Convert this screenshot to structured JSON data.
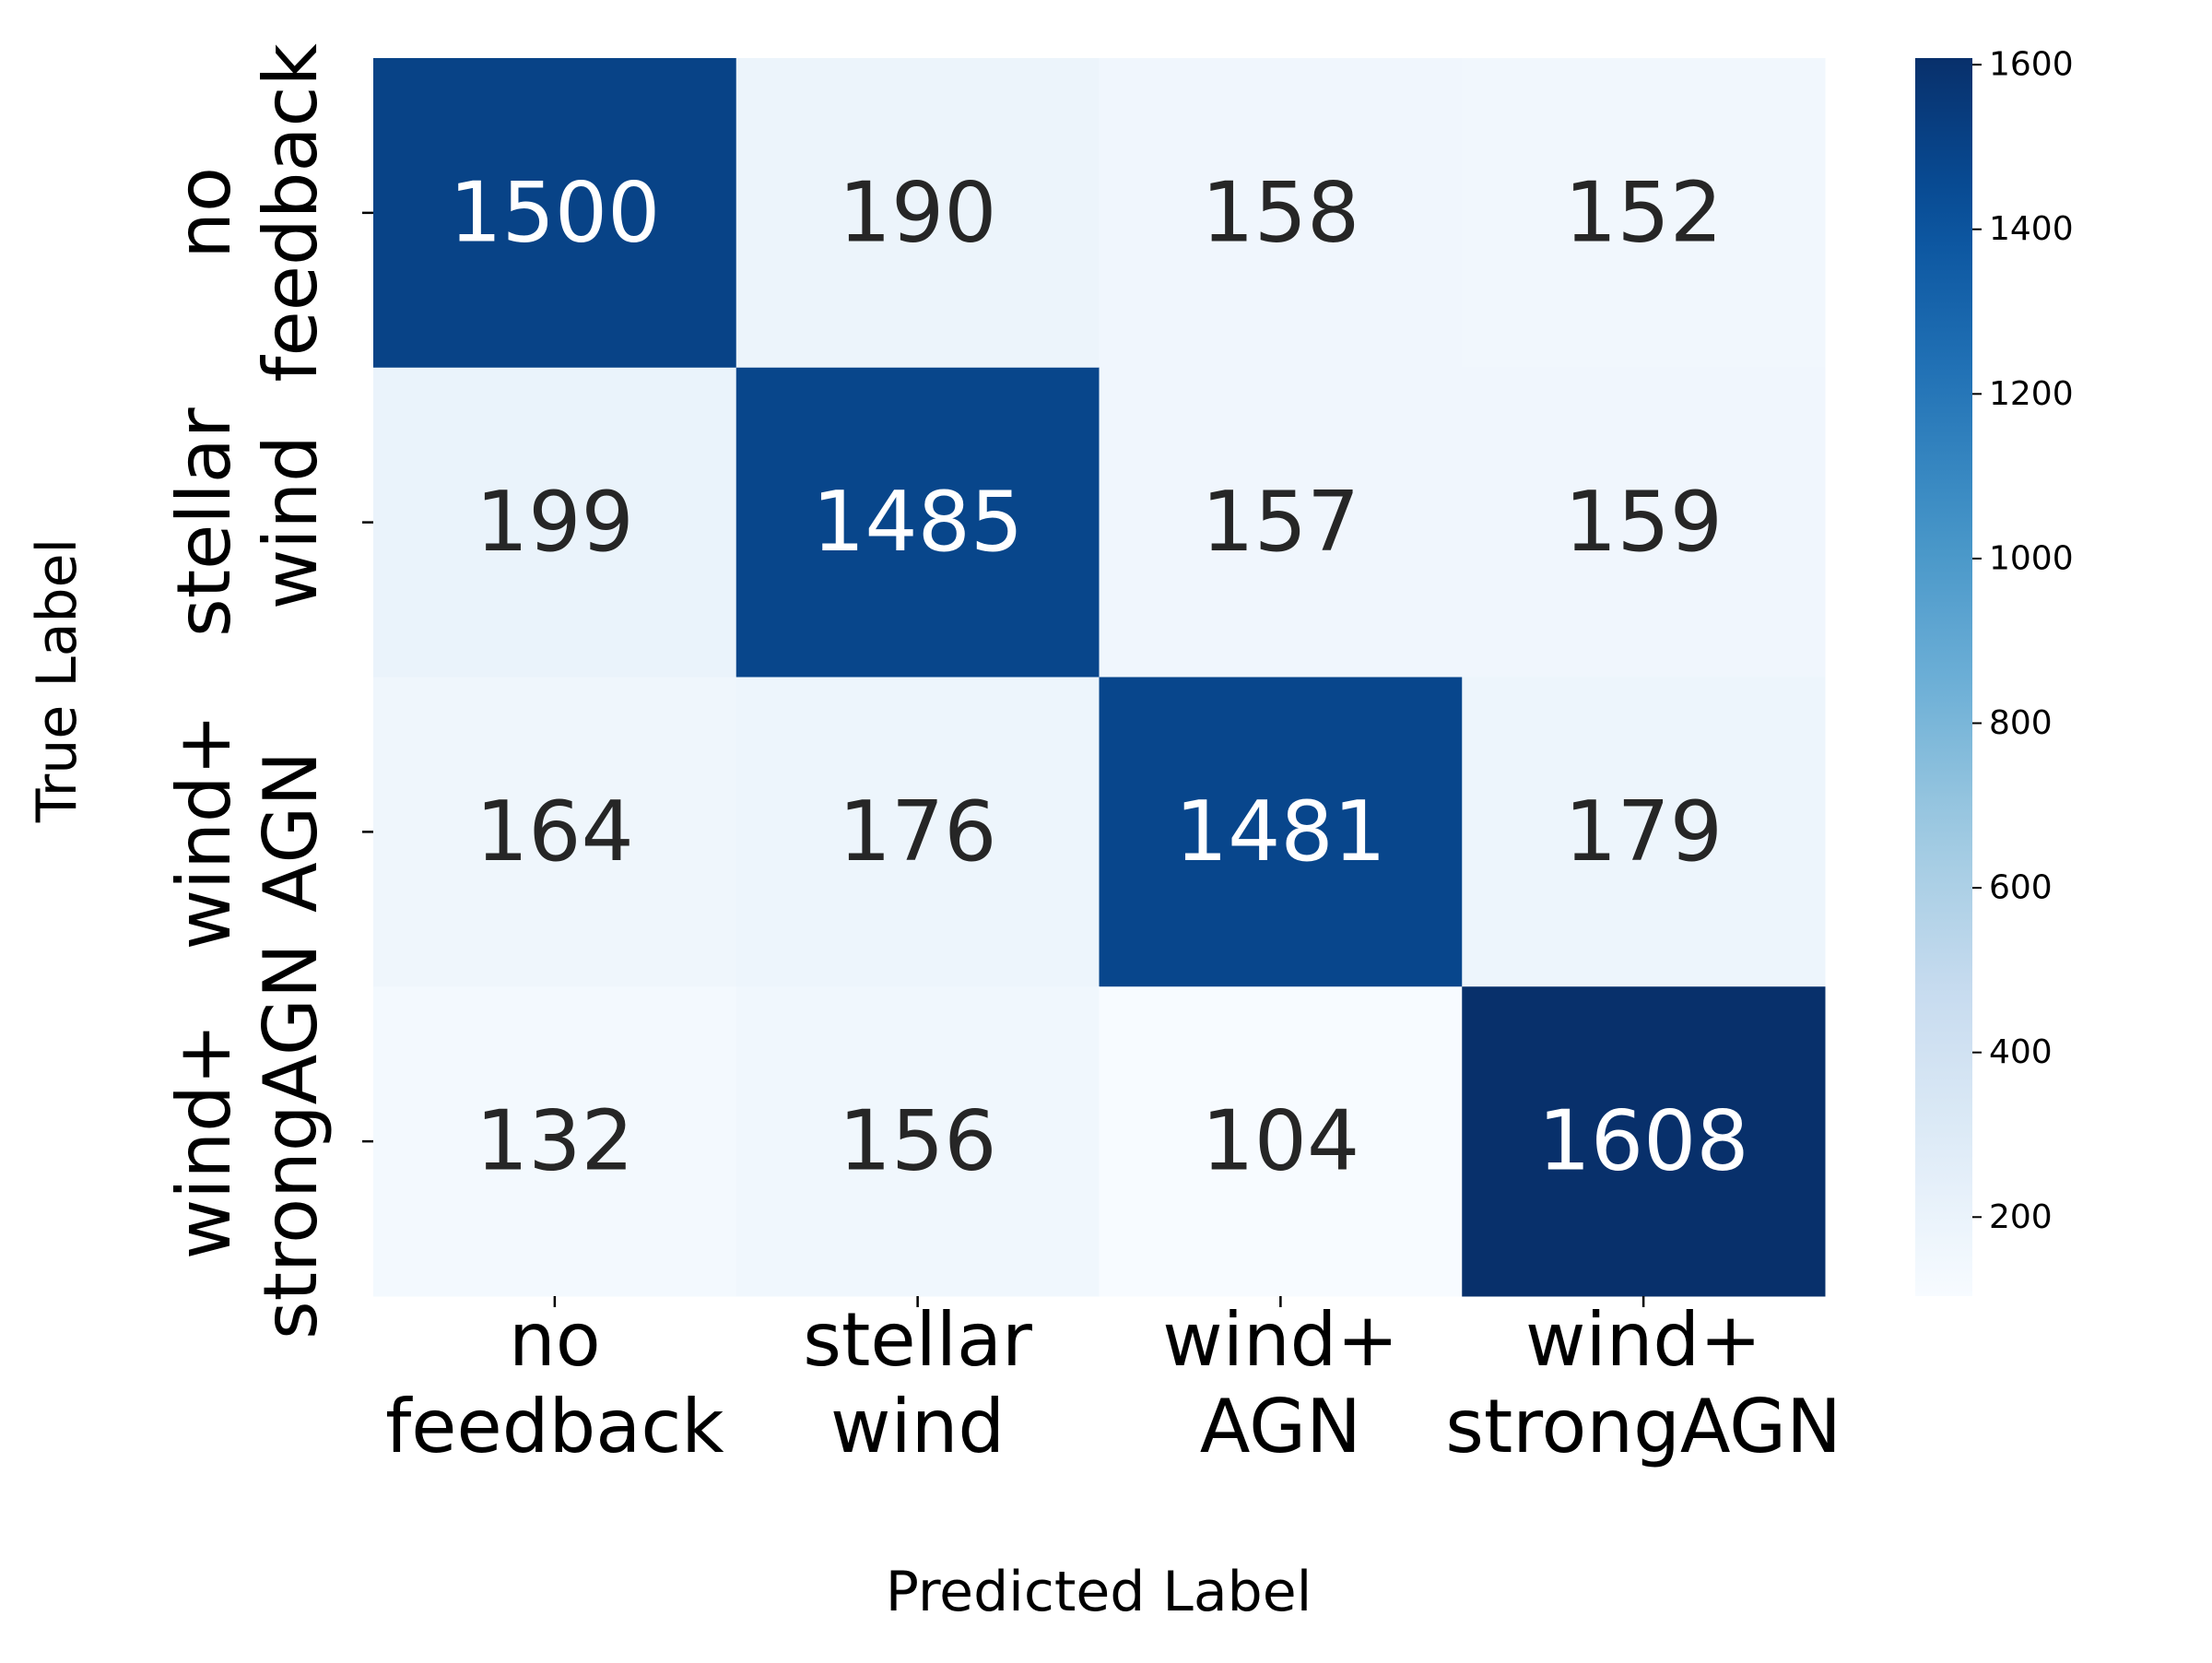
{
  "chart_data": {
    "type": "heatmap",
    "x_categories": [
      [
        "no",
        "feedback"
      ],
      [
        "stellar",
        "wind"
      ],
      [
        "wind+",
        "AGN"
      ],
      [
        "wind+",
        "strongAGN"
      ]
    ],
    "y_categories": [
      [
        "no",
        "feedback"
      ],
      [
        "stellar",
        "wind"
      ],
      [
        "wind+",
        "AGN"
      ],
      [
        "wind+",
        "strongAGN"
      ]
    ],
    "values": [
      [
        1500,
        190,
        158,
        152
      ],
      [
        199,
        1485,
        157,
        159
      ],
      [
        164,
        176,
        1481,
        179
      ],
      [
        132,
        156,
        104,
        1608
      ]
    ],
    "xlabel": "Predicted Label",
    "ylabel": "True Label",
    "colorbar": {
      "range": [
        104,
        1608
      ],
      "ticks": [
        200,
        400,
        600,
        800,
        1000,
        1200,
        1400,
        1600
      ],
      "colormap": "Blues"
    }
  }
}
